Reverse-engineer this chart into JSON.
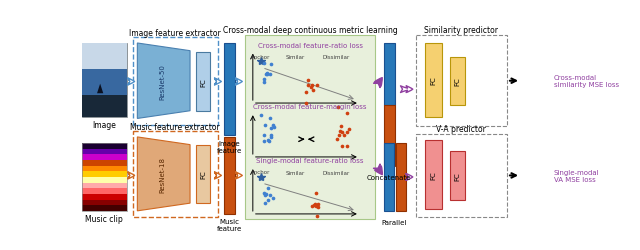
{
  "bg_color": "#ffffff",
  "image_label": "Image",
  "music_label": "Music clip",
  "resnet50_label": "ResNet-50",
  "resnet18_label": "ResNet-18",
  "fc_label": "FC",
  "image_feature_label": "Image\nfeature",
  "music_feature_label": "Music\nfeature",
  "concatenate_label": "Concatenate",
  "parallel_label": "Parallel",
  "similarity_predictor_title": "Similarity predictor",
  "va_predictor_title": "V-A predictor",
  "image_extractor_title": "Image feature extractor",
  "music_extractor_title": "Music feature extractor",
  "cross_modal_title": "Cross-modal deep continuous metric learning",
  "loss1_title": "Cross-modal feature-ratio loss",
  "loss2_title": "Cross-modal feature-margin loss",
  "loss3_title": "Single-modal feature-ratio loss",
  "cross_modal_mse": "Cross-modal\nsimilarity MSE loss",
  "single_modal_mse": "Single-modal\nVA MSE loss",
  "anchor_label": "Anchor",
  "similar_label": "Similar",
  "dissimilar_label": "Dissimilar",
  "blue_resnet": "#7ab0d4",
  "light_blue_fc": "#b0cfe8",
  "orange_resnet": "#e0a878",
  "light_orange_fc": "#e8c8a0",
  "blue_feature": "#2878b8",
  "orange_feature": "#c85010",
  "yellow_fc": "#f5d070",
  "pink_fc": "#f09090",
  "green_bg": "#e8f0dc",
  "purple_c": "#9040a0",
  "blue_dot": "#4080d0",
  "orange_dot": "#d04010",
  "dashed_blue": "#5090c8",
  "dashed_orange": "#d06820"
}
